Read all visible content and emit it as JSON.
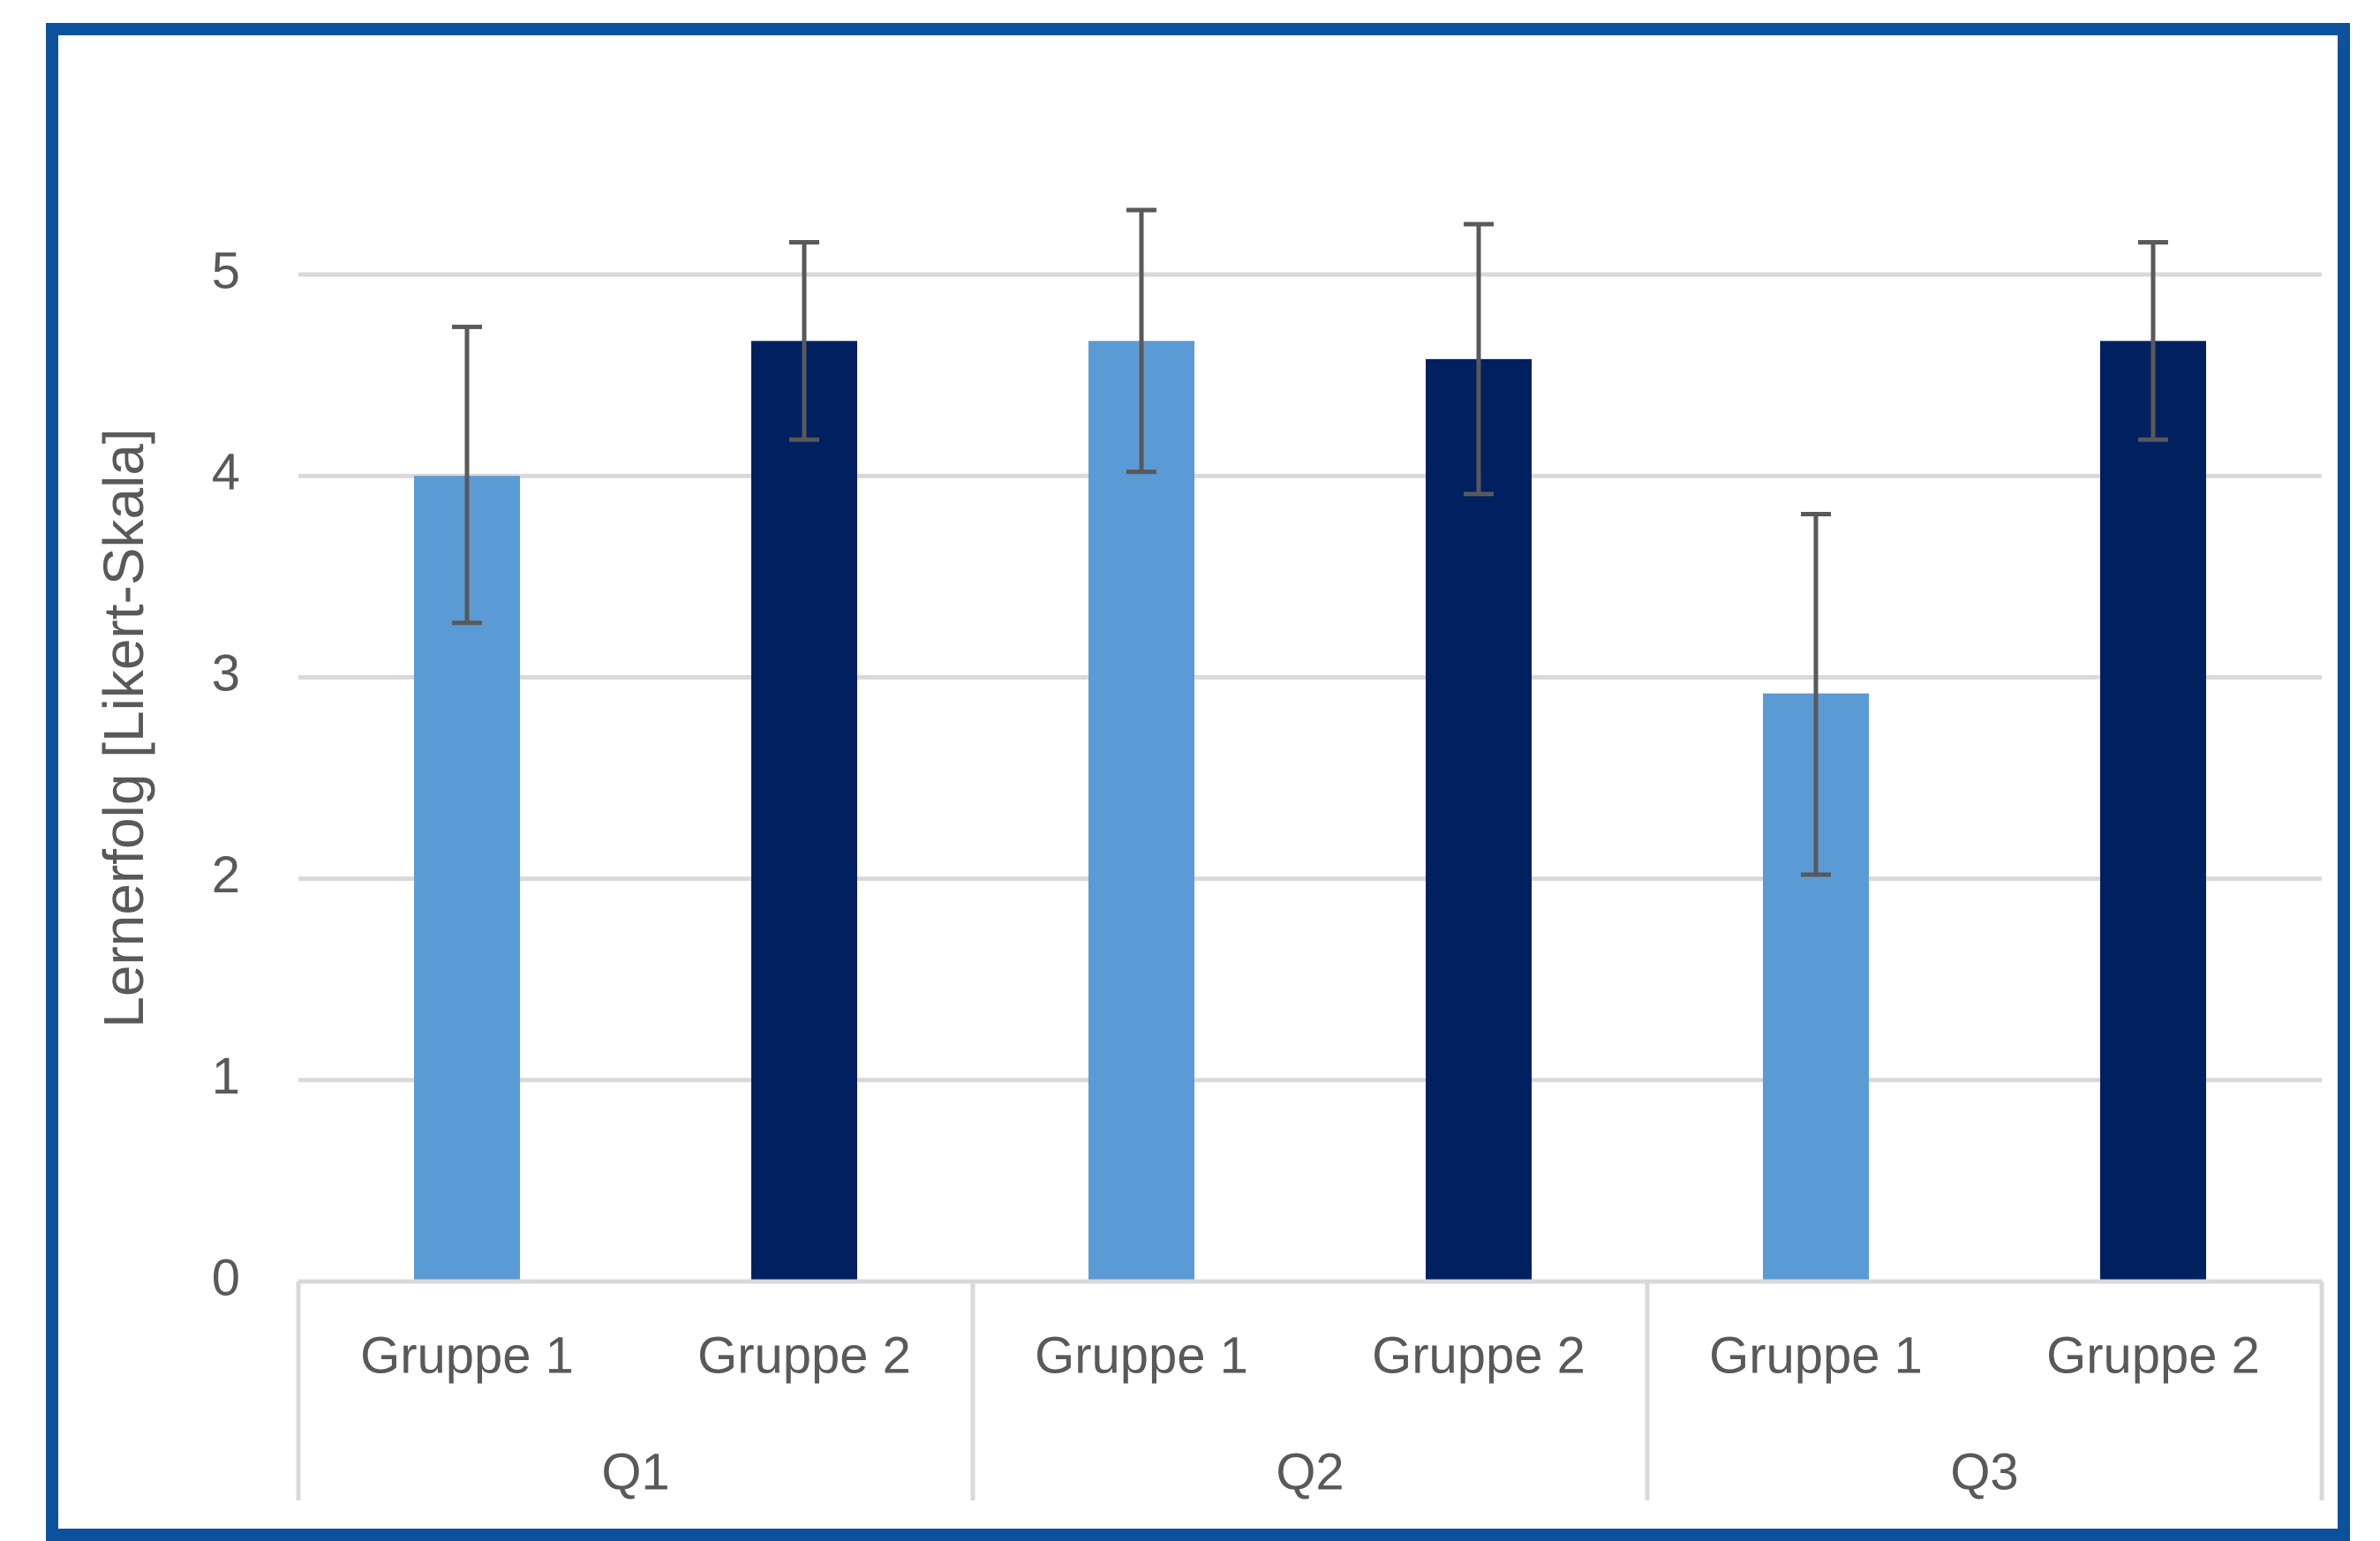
{
  "chart_data": {
    "type": "bar",
    "title": "",
    "xlabel": "",
    "ylabel": "Lernerfolg [Likert-Skala]",
    "ylim": [
      0,
      5
    ],
    "yticks": [
      "0",
      "1",
      "2",
      "3",
      "4",
      "5"
    ],
    "grid": true,
    "groups": [
      "Q1",
      "Q2",
      "Q3"
    ],
    "categories": [
      "Gruppe 1",
      "Gruppe 2"
    ],
    "bars": [
      {
        "group": "Q1",
        "category": "Gruppe 1",
        "value": 4.0,
        "error_low": 3.27,
        "error_high": 4.74
      },
      {
        "group": "Q1",
        "category": "Gruppe 2",
        "value": 4.67,
        "error_low": 4.18,
        "error_high": 5.16
      },
      {
        "group": "Q2",
        "category": "Gruppe 1",
        "value": 4.67,
        "error_low": 4.02,
        "error_high": 5.32
      },
      {
        "group": "Q2",
        "category": "Gruppe 2",
        "value": 4.58,
        "error_low": 3.91,
        "error_high": 5.25
      },
      {
        "group": "Q3",
        "category": "Gruppe 1",
        "value": 2.92,
        "error_low": 2.02,
        "error_high": 3.81
      },
      {
        "group": "Q3",
        "category": "Gruppe 2",
        "value": 4.67,
        "error_low": 4.18,
        "error_high": 5.16
      }
    ],
    "colors": {
      "Gruppe 1": "#5b9bd5",
      "Gruppe 2": "#002060",
      "error_bar": "#595959",
      "grid": "#d9d9d9",
      "frame": "#0b519c"
    }
  }
}
